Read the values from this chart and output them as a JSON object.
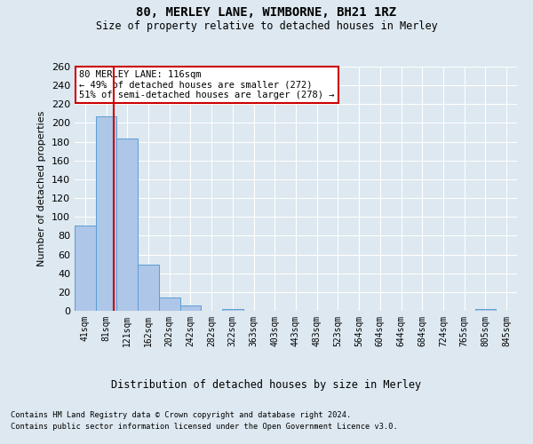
{
  "title1": "80, MERLEY LANE, WIMBORNE, BH21 1RZ",
  "title2": "Size of property relative to detached houses in Merley",
  "xlabel": "Distribution of detached houses by size in Merley",
  "ylabel": "Number of detached properties",
  "footnote1": "Contains HM Land Registry data © Crown copyright and database right 2024.",
  "footnote2": "Contains public sector information licensed under the Open Government Licence v3.0.",
  "annotation_line1": "80 MERLEY LANE: 116sqm",
  "annotation_line2": "← 49% of detached houses are smaller (272)",
  "annotation_line3": "51% of semi-detached houses are larger (278) →",
  "bar_labels": [
    "41sqm",
    "81sqm",
    "121sqm",
    "162sqm",
    "202sqm",
    "242sqm",
    "282sqm",
    "322sqm",
    "363sqm",
    "403sqm",
    "443sqm",
    "483sqm",
    "523sqm",
    "564sqm",
    "604sqm",
    "644sqm",
    "684sqm",
    "724sqm",
    "765sqm",
    "805sqm",
    "845sqm"
  ],
  "bar_values": [
    91,
    207,
    183,
    49,
    14,
    6,
    0,
    2,
    0,
    0,
    0,
    0,
    0,
    0,
    0,
    0,
    0,
    0,
    0,
    2,
    0
  ],
  "bar_color": "#aec6e8",
  "bar_edge_color": "#5a9fd4",
  "marker_color": "#cc0000",
  "ylim": [
    0,
    260
  ],
  "yticks": [
    0,
    20,
    40,
    60,
    80,
    100,
    120,
    140,
    160,
    180,
    200,
    220,
    240,
    260
  ],
  "bg_color": "#dde8f0",
  "plot_bg_color": "#dde8f0",
  "annotation_box_color": "#ffffff",
  "annotation_box_edge": "#cc0000"
}
